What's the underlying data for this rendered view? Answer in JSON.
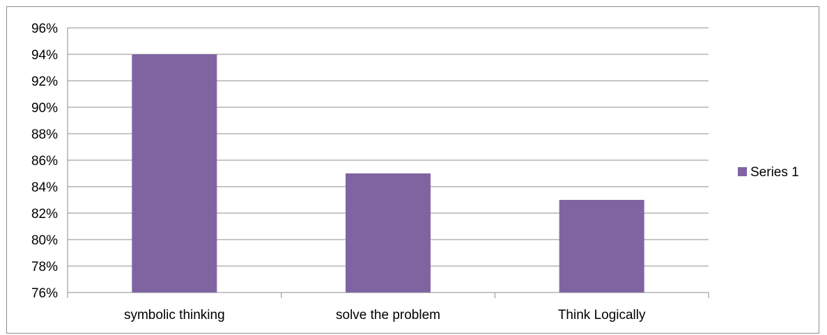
{
  "chart_data": {
    "type": "bar",
    "categories": [
      "symbolic thinking",
      "solve the problem",
      "Think Logically"
    ],
    "series": [
      {
        "name": "Series 1",
        "values": [
          94,
          85,
          83
        ],
        "color": "#8064a2"
      }
    ],
    "ylim": [
      76,
      96
    ],
    "ytick_step": 2,
    "ytick_suffix": "%",
    "grid": true,
    "legend": "right"
  },
  "colors": {
    "gridline": "#8c8c8c",
    "frame": "#8c8c8c",
    "bar": "#8064a2"
  }
}
